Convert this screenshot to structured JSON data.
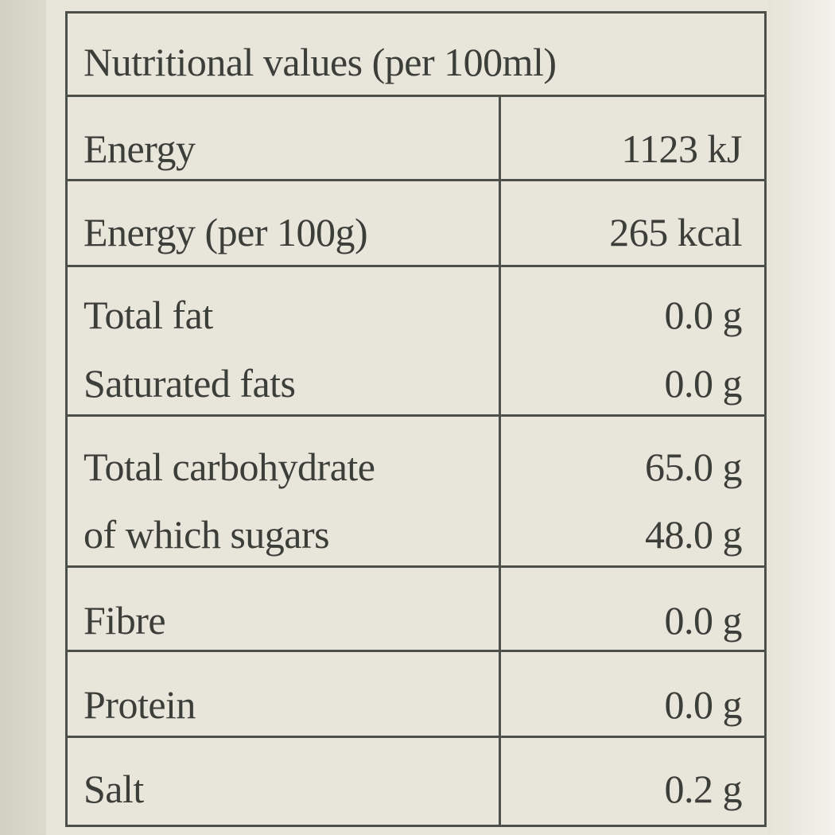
{
  "header": "Nutritional values (per 100ml)",
  "rows": [
    {
      "label": "Energy",
      "value": "1123 kJ"
    },
    {
      "label": "Energy (per 100g)",
      "value": "265 kcal"
    },
    {
      "label": "Total fat",
      "value": "0.0 g"
    },
    {
      "label": "Saturated fats",
      "value": "0.0 g"
    },
    {
      "label": "Total carbohydrate",
      "value": "65.0 g"
    },
    {
      "label": "of which sugars",
      "value": "48.0 g"
    },
    {
      "label": "Fibre",
      "value": "0.0 g"
    },
    {
      "label": "Protein",
      "value": "0.0 g"
    },
    {
      "label": "Salt",
      "value": "0.2 g"
    }
  ]
}
